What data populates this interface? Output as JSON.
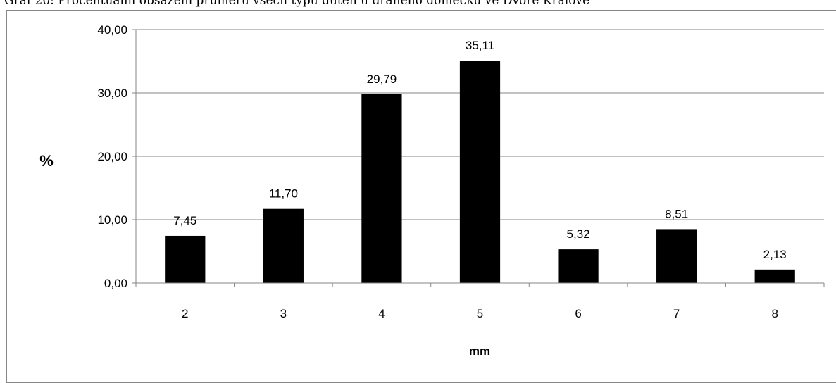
{
  "caption": "Graf 20: Procentuální obsazení průměru všech typů duten u drahého domečku ve Dvoře Králové",
  "chart_data": {
    "type": "bar",
    "categories": [
      "2",
      "3",
      "4",
      "5",
      "6",
      "7",
      "8"
    ],
    "values": [
      7.45,
      11.7,
      29.79,
      35.11,
      5.32,
      8.51,
      2.13
    ],
    "value_labels": [
      "7,45",
      "11,70",
      "29,79",
      "35,11",
      "5,32",
      "8,51",
      "2,13"
    ],
    "ylim": [
      0,
      40
    ],
    "yticks": [
      0,
      10,
      20,
      30,
      40
    ],
    "ytick_labels": [
      "0,00",
      "10,00",
      "20,00",
      "30,00",
      "40,00"
    ],
    "xlabel": "mm",
    "ylabel": "%",
    "grid": true,
    "bar_color": "#000000",
    "grid_color": "#868686"
  }
}
